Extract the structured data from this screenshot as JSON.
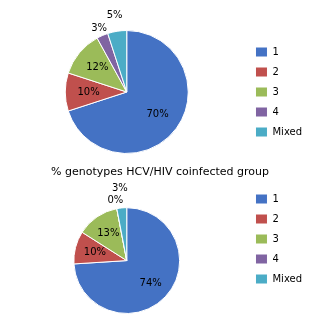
{
  "chart_data": [
    {
      "type": "pie",
      "categories": [
        "1",
        "2",
        "3",
        "4",
        "Mixed"
      ],
      "values": [
        70,
        10,
        12,
        3,
        5
      ],
      "value_labels": [
        "70%",
        "10%",
        "12%",
        "3%",
        "5%"
      ],
      "colors": [
        "#4472C4",
        "#C0504D",
        "#9BBB59",
        "#8064A2",
        "#4BACC6"
      ],
      "data_labels": true,
      "legend": "right"
    },
    {
      "type": "pie",
      "title": "% genotypes HCV/HIV coinfected group",
      "categories": [
        "1",
        "2",
        "3",
        "4",
        "Mixed"
      ],
      "values": [
        74,
        10,
        13,
        0.001,
        3
      ],
      "value_labels": [
        "74%",
        "10%",
        "13%",
        "0%",
        "3%"
      ],
      "colors": [
        "#4472C4",
        "#C0504D",
        "#9BBB59",
        "#8064A2",
        "#4BACC6"
      ],
      "data_labels": true,
      "legend": "right"
    }
  ]
}
